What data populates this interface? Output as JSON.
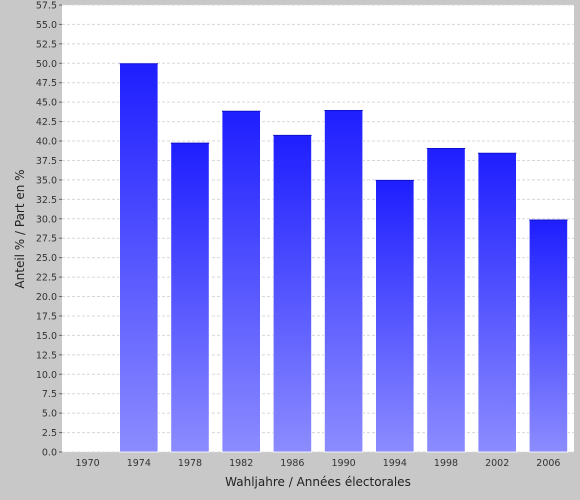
{
  "chart_data": {
    "type": "bar",
    "categories": [
      "1970",
      "1974",
      "1978",
      "1982",
      "1986",
      "1990",
      "1994",
      "1998",
      "2002",
      "2006"
    ],
    "values": [
      null,
      50.0,
      39.8,
      43.9,
      40.8,
      44.0,
      35.0,
      39.1,
      38.5,
      29.9
    ],
    "xlabel": "Wahljahre / Années électorales",
    "ylabel": "Anteil % / Part en %",
    "ylim": [
      0,
      57.5
    ],
    "ytick_step": 2.5,
    "grid": true,
    "colors": {
      "bar_top": "#1e1eff",
      "bar_bottom": "#8c8cff",
      "plot_background": "#ffffff",
      "outer_background": "#c8c8c8",
      "grid": "#d8d8d8"
    }
  }
}
